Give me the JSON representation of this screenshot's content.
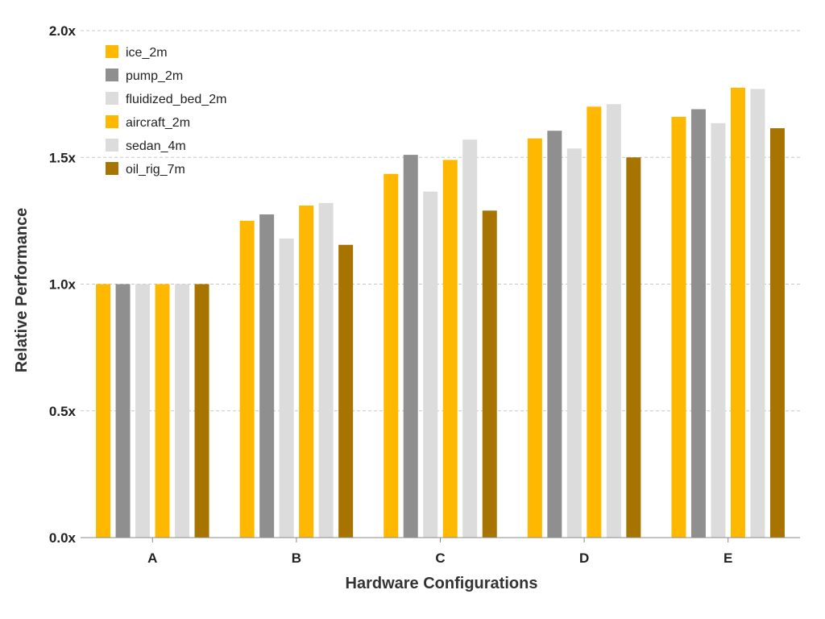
{
  "chart_data": {
    "type": "bar",
    "title": "",
    "xlabel": "Hardware Configurations",
    "ylabel": "Relative Performance",
    "ylim": [
      0,
      2.0
    ],
    "yticks": [
      0.0,
      0.5,
      1.0,
      1.5,
      2.0
    ],
    "ytick_labels": [
      "0.0x",
      "0.5x",
      "1.0x",
      "1.5x",
      "2.0x"
    ],
    "grid": true,
    "legend_position": "top-left",
    "categories": [
      "A",
      "B",
      "C",
      "D",
      "E"
    ],
    "series": [
      {
        "name": "ice_2m",
        "color": "#FFB800",
        "values": [
          1.0,
          1.25,
          1.435,
          1.575,
          1.66
        ]
      },
      {
        "name": "pump_2m",
        "color": "#8F8F8F",
        "values": [
          1.0,
          1.275,
          1.51,
          1.605,
          1.69
        ]
      },
      {
        "name": "fluidized_bed_2m",
        "color": "#DCDCDC",
        "values": [
          1.0,
          1.18,
          1.365,
          1.535,
          1.635
        ]
      },
      {
        "name": "aircraft_2m",
        "color": "#FFB800",
        "values": [
          1.0,
          1.31,
          1.49,
          1.7,
          1.775
        ]
      },
      {
        "name": "sedan_4m",
        "color": "#DCDCDC",
        "values": [
          1.0,
          1.32,
          1.57,
          1.71,
          1.77
        ]
      },
      {
        "name": "oil_rig_7m",
        "color": "#A87400",
        "values": [
          1.0,
          1.155,
          1.29,
          1.5,
          1.615
        ]
      }
    ]
  }
}
